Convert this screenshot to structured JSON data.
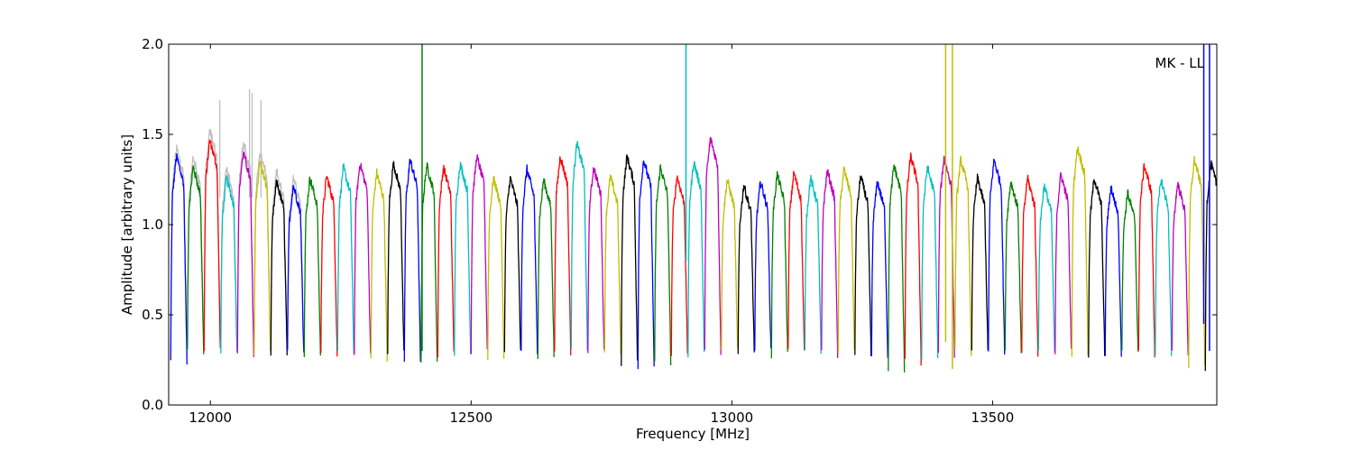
{
  "chart_data": {
    "type": "line",
    "title": "",
    "xlabel": "Frequency [MHz]",
    "ylabel": "Amplitude [arbitrary units]",
    "xlim": [
      11920,
      13930
    ],
    "ylim": [
      0.0,
      2.0
    ],
    "xticks": [
      12000,
      12500,
      13000,
      13500
    ],
    "yticks": [
      0.0,
      0.5,
      1.0,
      1.5,
      2.0
    ],
    "ytick_labels": [
      "0.0",
      "0.5",
      "1.0",
      "1.5",
      "2.0"
    ],
    "grid": false,
    "annotation": "MK - LL",
    "palette": [
      "#0000ff",
      "#008000",
      "#ff0000",
      "#00bfbf",
      "#bf00bf",
      "#bfbf00",
      "#000000"
    ],
    "background_trace_color": "#bfbfbf",
    "channels": {
      "start_mhz": 11924,
      "width_mhz": 32,
      "count": 63,
      "peak_amplitudes": [
        1.38,
        1.32,
        1.47,
        1.26,
        1.4,
        1.35,
        1.24,
        1.22,
        1.26,
        1.27,
        1.32,
        1.34,
        1.29,
        1.34,
        1.36,
        1.33,
        1.32,
        1.34,
        1.38,
        1.26,
        1.26,
        1.31,
        1.25,
        1.38,
        1.45,
        1.32,
        1.27,
        1.38,
        1.36,
        1.32,
        1.27,
        1.35,
        1.48,
        1.25,
        1.22,
        1.24,
        1.28,
        1.29,
        1.26,
        1.3,
        1.31,
        1.27,
        1.24,
        1.33,
        1.38,
        1.32,
        1.37,
        1.36,
        1.26,
        1.36,
        1.24,
        1.26,
        1.22,
        1.28,
        1.43,
        1.26,
        1.21,
        1.18,
        1.33,
        1.25,
        1.23,
        1.36,
        1.34
      ],
      "min_amplitudes": [
        0.24,
        0.3,
        0.3,
        0.3,
        0.29,
        0.28,
        0.29,
        0.28,
        0.29,
        0.28,
        0.29,
        0.27,
        0.26,
        0.28,
        0.22,
        0.22,
        0.28,
        0.29,
        0.3,
        0.27,
        0.28,
        0.29,
        0.28,
        0.3,
        0.31,
        0.29,
        0.29,
        0.24,
        0.21,
        0.22,
        0.28,
        0.28,
        0.29,
        0.3,
        0.28,
        0.29,
        0.28,
        0.29,
        0.29,
        0.28,
        0.29,
        0.28,
        0.27,
        0.2,
        0.24,
        0.27,
        0.28,
        0.29,
        0.3,
        0.29,
        0.28,
        0.29,
        0.28,
        0.29,
        0.29,
        0.28,
        0.29,
        0.28,
        0.28,
        0.28,
        0.28,
        0.22,
        0.2
      ]
    },
    "spikes": [
      {
        "x": 12406,
        "y_top": 2.0,
        "y_bottom": 0.3,
        "color": "#008000"
      },
      {
        "x": 12912,
        "y_top": 2.0,
        "y_bottom": 0.8,
        "color": "#00bfbf"
      },
      {
        "x": 13410,
        "y_top": 2.0,
        "y_bottom": 0.35,
        "color": "#bfbf00"
      },
      {
        "x": 13423,
        "y_top": 2.0,
        "y_bottom": 0.2,
        "color": "#bfbf00"
      },
      {
        "x": 13905,
        "y_top": 2.0,
        "y_bottom": 0.45,
        "color": "#0000ff"
      },
      {
        "x": 13916,
        "y_top": 2.0,
        "y_bottom": 0.3,
        "color": "#0000ff"
      }
    ],
    "gray_spikes": [
      {
        "x": 12018,
        "y_top": 1.69
      },
      {
        "x": 12075,
        "y_top": 1.75
      },
      {
        "x": 12080,
        "y_top": 1.73
      },
      {
        "x": 12097,
        "y_top": 1.69
      }
    ]
  }
}
